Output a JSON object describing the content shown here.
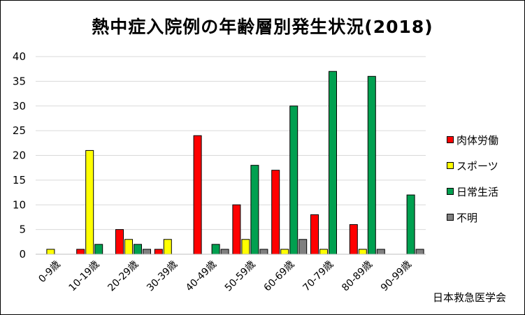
{
  "chart_data": {
    "type": "bar",
    "title": "熱中症入院例の年齢層別発生状況(2018)",
    "categories": [
      "0-9歳",
      "10-19歳",
      "20-29歳",
      "30-39歳",
      "40-49歳",
      "50-59歳",
      "60-69歳",
      "70-79歳",
      "80-89歳",
      "90-99歳"
    ],
    "series": [
      {
        "name": "肉体労働",
        "color": "#ff0000",
        "values": [
          0,
          1,
          5,
          1,
          24,
          10,
          17,
          8,
          6,
          0
        ]
      },
      {
        "name": "スポーツ",
        "color": "#ffff00",
        "values": [
          1,
          21,
          3,
          3,
          0,
          3,
          1,
          1,
          1,
          0
        ]
      },
      {
        "name": "日常生活",
        "color": "#00a050",
        "values": [
          0,
          2,
          2,
          0,
          2,
          18,
          30,
          37,
          36,
          12
        ]
      },
      {
        "name": "不明",
        "color": "#808080",
        "values": [
          0,
          0,
          1,
          0,
          1,
          1,
          3,
          0,
          1,
          1
        ]
      }
    ],
    "ylim": [
      0,
      40
    ],
    "yticks": [
      0,
      5,
      10,
      15,
      20,
      25,
      30,
      35,
      40
    ],
    "grid": true,
    "legend_position": "right",
    "source": "日本救急医学会"
  }
}
